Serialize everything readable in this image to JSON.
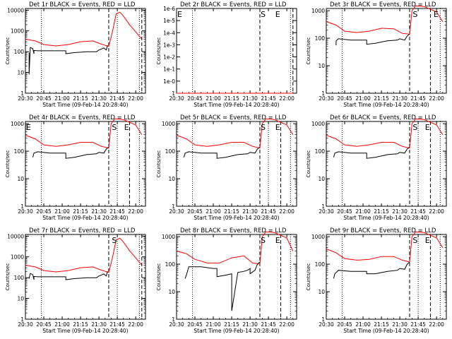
{
  "x_tick_labels": [
    "20:30",
    "20:45",
    "21:00",
    "21:15",
    "21:30",
    "21:45",
    "22:00"
  ],
  "x_axis_label": "Start Time (09-Feb-14 20:28:40)",
  "y_axis_label": "Counts/sec",
  "colors": {
    "events": "#000000",
    "lld": "#ff0000"
  },
  "chart_data": [
    {
      "type": "line",
      "title": "Det 1r BLACK = Events, RED = LLD",
      "x_range": [
        "20:30",
        "22:08"
      ],
      "y_scale": "log",
      "ylim": [
        1,
        12000
      ],
      "y_tick_labels": [
        "1",
        "10",
        "100",
        "1000",
        "10000"
      ],
      "vlines_dotted": [
        "20:43",
        "21:45",
        "22:03"
      ],
      "vlines_dashed": [
        "21:38",
        "22:05"
      ],
      "markers": [],
      "series": [
        {
          "color": "red",
          "x": [
            "20:30",
            "20:38",
            "20:45",
            "20:55",
            "21:05",
            "21:15",
            "21:25",
            "21:32",
            "21:38",
            "21:41",
            "21:44",
            "21:47",
            "21:50",
            "21:55",
            "22:00",
            "22:05"
          ],
          "values": [
            400,
            330,
            220,
            190,
            220,
            300,
            330,
            230,
            180,
            900,
            6500,
            8000,
            5200,
            2000,
            900,
            400
          ]
        },
        {
          "color": "black",
          "x": [
            "20:33",
            "20:33",
            "20:34",
            "20:36",
            "20:37",
            "20:37",
            "20:40",
            "20:43",
            "20:50",
            "21:00",
            "21:03",
            "21:03",
            "21:10",
            "21:20",
            "21:28",
            "21:30",
            "21:34",
            "21:36",
            "21:37"
          ],
          "values": [
            90,
            8,
            160,
            140,
            80,
            115,
            110,
            110,
            110,
            110,
            110,
            80,
            90,
            100,
            100,
            120,
            150,
            120,
            200
          ]
        }
      ]
    },
    {
      "type": "line",
      "title": "Det 2r BLACK = Events, RED = LLD",
      "x_range": [
        "20:30",
        "22:08"
      ],
      "y_scale": "log",
      "ylim": [
        1,
        1.2e-06
      ],
      "y_tick_labels": [
        "1",
        "1e-0",
        "1e-1",
        "1e-2",
        "1e-3",
        "1e-4",
        "1e-5",
        "1e-6"
      ],
      "vlines_dotted": [
        "20:43",
        "22:03"
      ],
      "vlines_dashed": [
        "21:38",
        "22:05"
      ],
      "markers": [
        {
          "text": "E",
          "x": "20:30"
        },
        {
          "text": "S",
          "x": "21:38"
        },
        {
          "text": "E",
          "x": "21:50"
        }
      ],
      "series": [
        {
          "color": "red",
          "x": [
            "20:30",
            "22:05"
          ],
          "values": [
            1,
            1
          ]
        }
      ]
    },
    {
      "type": "line",
      "title": "Det 3r BLACK = Events, RED = LLD",
      "x_range": [
        "20:30",
        "22:08"
      ],
      "y_scale": "log",
      "ylim": [
        1,
        1200
      ],
      "y_tick_labels": [
        "1",
        "10",
        "100",
        "1000"
      ],
      "vlines_dotted": [
        "20:43",
        "22:03"
      ],
      "vlines_dashed": [
        "21:38",
        "21:55"
      ],
      "markers": [
        {
          "text": "S",
          "x": "21:40"
        },
        {
          "text": "E",
          "x": "21:57"
        }
      ],
      "series": [
        {
          "color": "red",
          "x": [
            "20:30",
            "20:38",
            "20:45",
            "20:55",
            "21:05",
            "21:15",
            "21:25",
            "21:32",
            "21:38",
            "21:40",
            "21:43",
            "21:50",
            "22:00",
            "22:05"
          ],
          "values": [
            400,
            300,
            180,
            160,
            180,
            230,
            220,
            150,
            140,
            1000,
            1500,
            1400,
            900,
            400
          ]
        },
        {
          "color": "black",
          "x": [
            "20:38",
            "20:38",
            "20:40",
            "20:50",
            "21:00",
            "21:03",
            "21:03",
            "21:10",
            "21:20",
            "21:28",
            "21:30",
            "21:34",
            "21:36",
            "21:38"
          ],
          "values": [
            55,
            80,
            95,
            85,
            85,
            85,
            60,
            65,
            80,
            85,
            95,
            85,
            120,
            140
          ]
        }
      ]
    },
    {
      "type": "line",
      "title": "Det 4r BLACK = Events, RED = LLD",
      "x_range": [
        "20:30",
        "22:08"
      ],
      "y_scale": "log",
      "ylim": [
        1,
        1200
      ],
      "y_tick_labels": [
        "1",
        "10",
        "100",
        "1000"
      ],
      "vlines_dotted": [
        "20:43",
        "21:45",
        "22:03"
      ],
      "vlines_dashed": [
        "21:38",
        "21:55"
      ],
      "markers": [
        {
          "text": "E",
          "x": "20:30"
        },
        {
          "text": "S",
          "x": "21:40"
        },
        {
          "text": "E",
          "x": "21:50"
        }
      ],
      "series": [
        {
          "color": "red",
          "x": [
            "20:30",
            "20:38",
            "20:45",
            "20:55",
            "21:05",
            "21:15",
            "21:25",
            "21:32",
            "21:38",
            "21:40",
            "21:43",
            "21:50",
            "22:00",
            "22:05"
          ],
          "values": [
            380,
            280,
            170,
            150,
            170,
            210,
            210,
            150,
            130,
            1000,
            1500,
            1400,
            900,
            400
          ]
        },
        {
          "color": "black",
          "x": [
            "20:36",
            "20:37",
            "20:40",
            "20:50",
            "21:00",
            "21:03",
            "21:03",
            "21:10",
            "21:20",
            "21:28",
            "21:30",
            "21:34",
            "21:36",
            "21:38"
          ],
          "values": [
            60,
            85,
            95,
            85,
            85,
            85,
            55,
            60,
            75,
            80,
            90,
            85,
            120,
            140
          ]
        }
      ]
    },
    {
      "type": "line",
      "title": "Det 5r BLACK = Events, RED = LLD",
      "x_range": [
        "20:30",
        "22:08"
      ],
      "y_scale": "log",
      "ylim": [
        1,
        1200
      ],
      "y_tick_labels": [
        "1",
        "10",
        "100",
        "1000"
      ],
      "vlines_dotted": [
        "20:43",
        "21:45",
        "22:03"
      ],
      "vlines_dashed": [
        "21:38",
        "21:55"
      ],
      "markers": [
        {
          "text": "S",
          "x": "21:38"
        },
        {
          "text": "E",
          "x": "21:50"
        }
      ],
      "series": [
        {
          "color": "red",
          "x": [
            "20:30",
            "20:38",
            "20:45",
            "20:55",
            "21:05",
            "21:15",
            "21:25",
            "21:32",
            "21:38",
            "21:40",
            "21:43",
            "21:50",
            "22:00",
            "22:05"
          ],
          "values": [
            380,
            280,
            170,
            150,
            170,
            210,
            210,
            150,
            130,
            1000,
            1500,
            1400,
            900,
            400
          ]
        },
        {
          "color": "black",
          "x": [
            "20:36",
            "20:37",
            "20:40",
            "20:50",
            "21:00",
            "21:03",
            "21:03",
            "21:10",
            "21:20",
            "21:28",
            "21:30",
            "21:34",
            "21:36",
            "21:38"
          ],
          "values": [
            60,
            85,
            95,
            85,
            85,
            85,
            55,
            60,
            75,
            80,
            90,
            85,
            120,
            140
          ]
        }
      ]
    },
    {
      "type": "line",
      "title": "Det 6r BLACK = Events, RED = LLD",
      "x_range": [
        "20:30",
        "22:08"
      ],
      "y_scale": "log",
      "ylim": [
        1,
        1200
      ],
      "y_tick_labels": [
        "1",
        "10",
        "100",
        "1000"
      ],
      "vlines_dotted": [
        "20:43",
        "21:45",
        "22:03"
      ],
      "vlines_dashed": [
        "21:38",
        "21:55"
      ],
      "markers": [
        {
          "text": "S",
          "x": "21:40"
        },
        {
          "text": "E",
          "x": "21:50"
        }
      ],
      "series": [
        {
          "color": "red",
          "x": [
            "20:30",
            "20:38",
            "20:45",
            "20:55",
            "21:05",
            "21:15",
            "21:25",
            "21:32",
            "21:38",
            "21:40",
            "21:43",
            "21:50",
            "22:00",
            "22:05"
          ],
          "values": [
            380,
            280,
            170,
            150,
            170,
            210,
            210,
            150,
            130,
            1000,
            1500,
            1400,
            900,
            400
          ]
        },
        {
          "color": "black",
          "x": [
            "20:36",
            "20:37",
            "20:40",
            "20:50",
            "21:00",
            "21:03",
            "21:03",
            "21:10",
            "21:20",
            "21:28",
            "21:30",
            "21:34",
            "21:36",
            "21:38"
          ],
          "values": [
            60,
            85,
            95,
            85,
            85,
            85,
            55,
            60,
            75,
            80,
            90,
            85,
            120,
            140
          ]
        }
      ]
    },
    {
      "type": "line",
      "title": "Det 7r BLACK = Events, RED = LLD",
      "x_range": [
        "20:30",
        "22:08"
      ],
      "y_scale": "log",
      "ylim": [
        1,
        12000
      ],
      "y_tick_labels": [
        "1",
        "10",
        "100",
        "1000",
        "10000"
      ],
      "vlines_dotted": [
        "20:43",
        "21:45",
        "22:03"
      ],
      "vlines_dashed": [
        "21:38",
        "22:05"
      ],
      "markers": [
        {
          "text": "S",
          "x": "21:40"
        }
      ],
      "series": [
        {
          "color": "red",
          "x": [
            "20:30",
            "20:38",
            "20:45",
            "20:55",
            "21:05",
            "21:15",
            "21:25",
            "21:32",
            "21:38",
            "21:41",
            "21:44",
            "21:47",
            "21:50",
            "21:55",
            "22:00",
            "22:05"
          ],
          "values": [
            400,
            330,
            220,
            190,
            220,
            300,
            330,
            230,
            180,
            900,
            6500,
            8000,
            5200,
            2000,
            900,
            400
          ]
        },
        {
          "color": "black",
          "x": [
            "20:33",
            "20:34",
            "20:36",
            "20:37",
            "20:37",
            "20:40",
            "20:43",
            "20:50",
            "21:00",
            "21:03",
            "21:03",
            "21:10",
            "21:20",
            "21:28",
            "21:30",
            "21:34",
            "21:36",
            "21:37"
          ],
          "values": [
            90,
            160,
            140,
            80,
            115,
            110,
            110,
            110,
            110,
            110,
            80,
            90,
            100,
            100,
            120,
            150,
            120,
            200
          ]
        }
      ]
    },
    {
      "type": "line",
      "title": "Det 8r BLACK = Events, RED = LLD",
      "x_range": [
        "20:30",
        "22:08"
      ],
      "y_scale": "log",
      "ylim": [
        1,
        1200
      ],
      "y_tick_labels": [
        "1",
        "10",
        "100",
        "1000"
      ],
      "vlines_dotted": [
        "20:43",
        "22:03"
      ],
      "vlines_dashed": [
        "21:38",
        "21:55"
      ],
      "markers": [
        {
          "text": "S",
          "x": "21:38"
        },
        {
          "text": "E",
          "x": "21:50"
        }
      ],
      "series": [
        {
          "color": "red",
          "x": [
            "20:30",
            "20:38",
            "20:45",
            "20:55",
            "21:05",
            "21:15",
            "21:25",
            "21:32",
            "21:38",
            "21:40",
            "21:43",
            "21:50",
            "22:00",
            "22:05"
          ],
          "values": [
            300,
            240,
            150,
            110,
            110,
            170,
            200,
            110,
            100,
            1000,
            1500,
            1400,
            900,
            300
          ]
        },
        {
          "color": "black",
          "x": [
            "20:37",
            "20:38",
            "20:40",
            "20:50",
            "21:00",
            "21:03",
            "21:03",
            "21:10",
            "21:15",
            "21:15",
            "21:20",
            "21:25",
            "21:28",
            "21:30",
            "21:30",
            "21:34",
            "21:36",
            "21:38"
          ],
          "values": [
            30,
            40,
            80,
            80,
            70,
            70,
            35,
            40,
            45,
            2,
            50,
            55,
            60,
            70,
            45,
            60,
            100,
            120
          ]
        }
      ]
    },
    {
      "type": "line",
      "title": "Det 9r BLACK = Events, RED = LLD",
      "x_range": [
        "20:30",
        "22:08"
      ],
      "y_scale": "log",
      "ylim": [
        1,
        1200
      ],
      "y_tick_labels": [
        "1",
        "10",
        "100",
        "1000"
      ],
      "vlines_dotted": [
        "20:43",
        "21:45",
        "22:03"
      ],
      "vlines_dashed": [
        "21:38",
        "21:55"
      ],
      "markers": [
        {
          "text": "S",
          "x": "21:40"
        },
        {
          "text": "E",
          "x": "21:50"
        }
      ],
      "series": [
        {
          "color": "red",
          "x": [
            "20:30",
            "20:38",
            "20:45",
            "20:55",
            "21:05",
            "21:15",
            "21:25",
            "21:32",
            "21:38",
            "21:40",
            "21:43",
            "21:50",
            "22:00",
            "22:05"
          ],
          "values": [
            360,
            260,
            160,
            140,
            150,
            190,
            190,
            140,
            120,
            1000,
            1500,
            1400,
            900,
            400
          ]
        },
        {
          "color": "black",
          "x": [
            "20:36",
            "20:37",
            "20:40",
            "20:50",
            "21:00",
            "21:03",
            "21:03",
            "21:10",
            "21:20",
            "21:28",
            "21:30",
            "21:34",
            "21:36",
            "21:38"
          ],
          "values": [
            30,
            45,
            60,
            55,
            55,
            55,
            45,
            45,
            55,
            60,
            70,
            65,
            100,
            120
          ]
        }
      ]
    }
  ]
}
